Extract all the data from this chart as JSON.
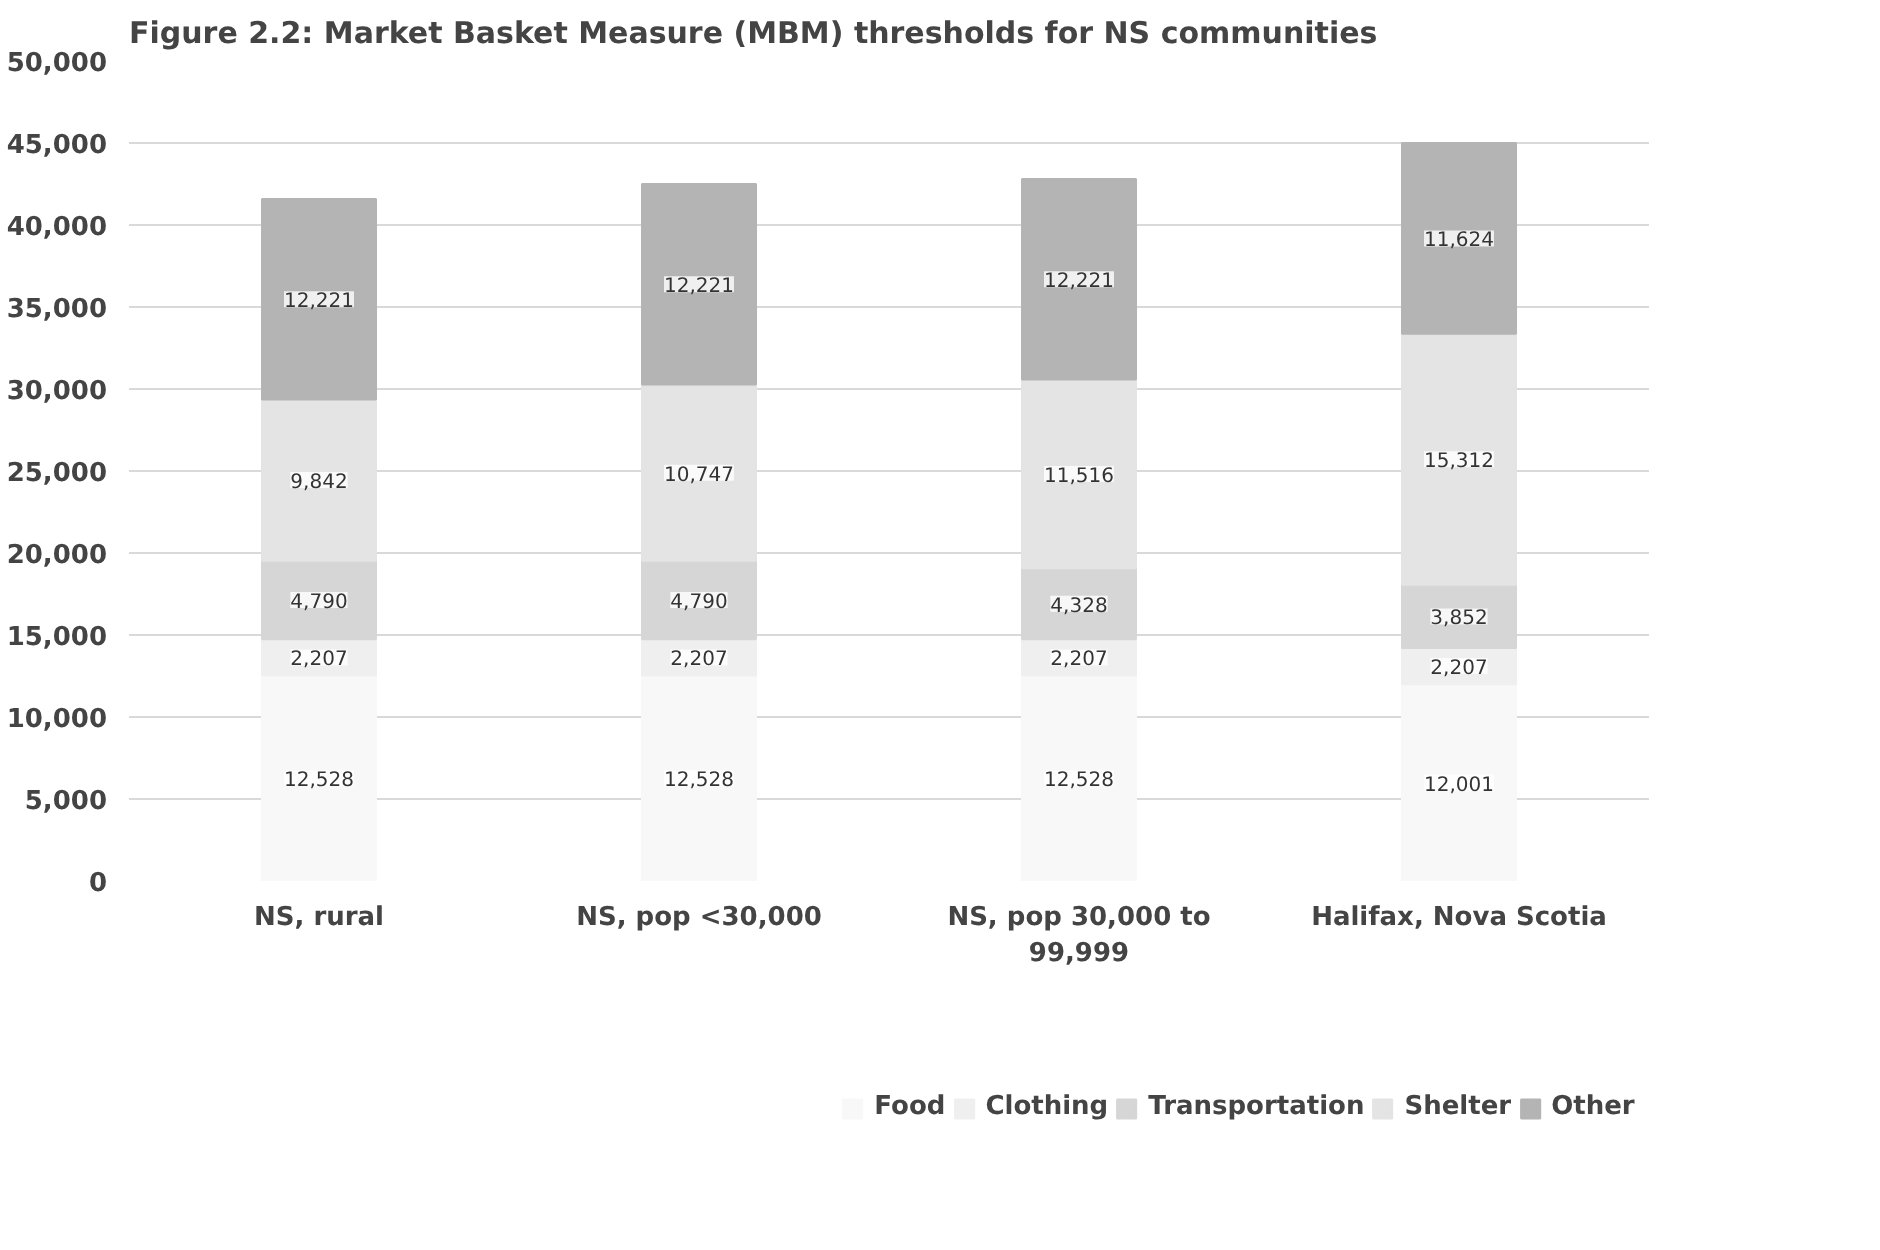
{
  "chart_data": {
    "type": "bar",
    "title": "Figure 2.2: Market Basket Measure (MBM) thresholds for NS communities",
    "categories": [
      "NS, rural",
      "NS, pop <30,000",
      "NS, pop 30,000 to 99,999",
      "Halifax, Nova Scotia"
    ],
    "stacked": true,
    "grid": "y",
    "legend": "bottom",
    "ylim": [
      0,
      50000
    ],
    "yticks": [
      {
        "value": 0,
        "label": "0"
      },
      {
        "value": 5000,
        "label": "5,000"
      },
      {
        "value": 10000,
        "label": "10,000"
      },
      {
        "value": 15000,
        "label": "15,000"
      },
      {
        "value": 20000,
        "label": "20,000"
      },
      {
        "value": 25000,
        "label": "25,000"
      },
      {
        "value": 30000,
        "label": "30,000"
      },
      {
        "value": 35000,
        "label": "35,000"
      },
      {
        "value": 40000,
        "label": "40,000"
      },
      {
        "value": 45000,
        "label": "45,000"
      },
      {
        "value": 50000,
        "label": "50,000"
      }
    ],
    "series": [
      {
        "name": "Food",
        "color": "#f8f8f8",
        "values": [
          12528,
          12528,
          12528,
          12001
        ],
        "value_labels": [
          "12,528",
          "12,528",
          "12,528",
          "12,001"
        ]
      },
      {
        "name": "Clothing",
        "color": "#efefef",
        "values": [
          2207,
          2207,
          2207,
          2207
        ],
        "value_labels": [
          "2,207",
          "2,207",
          "2,207",
          "2,207"
        ]
      },
      {
        "name": "Transportation",
        "color": "#d6d6d6",
        "values": [
          4790,
          4790,
          4328,
          3852
        ],
        "value_labels": [
          "4,790",
          "4,790",
          "4,328",
          "3,852"
        ]
      },
      {
        "name": "Shelter",
        "color": "#e4e4e4",
        "values": [
          9842,
          10747,
          11516,
          15312
        ],
        "value_labels": [
          "9,842",
          "10,747",
          "11,516",
          "15,312"
        ]
      },
      {
        "name": "Other",
        "color": "#b4b4b4",
        "values": [
          12221,
          12221,
          12221,
          11624
        ],
        "value_labels": [
          "12,221",
          "12,221",
          "12,221",
          "11,624"
        ]
      }
    ]
  }
}
